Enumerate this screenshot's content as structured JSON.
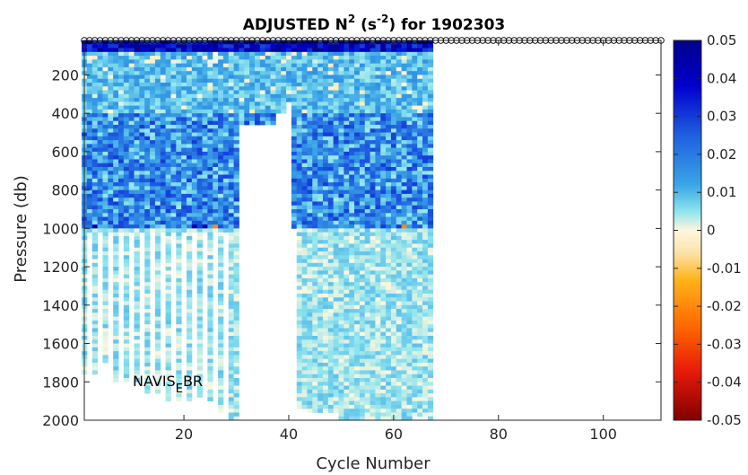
{
  "chart_data": {
    "type": "heatmap",
    "title_main": "ADJUSTED N",
    "title_sup": "2",
    "title_mid": " (s",
    "title_sup2": "-2",
    "title_end": ") for 1902303",
    "xlabel": "Cycle Number",
    "ylabel": "Pressure (db)",
    "xlim": [
      1,
      111
    ],
    "ylim": [
      2000,
      20
    ],
    "x_ticks": [
      "20",
      "40",
      "60",
      "80",
      "100"
    ],
    "y_ticks": [
      "200",
      "400",
      "600",
      "800",
      "1000",
      "1200",
      "1400",
      "1600",
      "1800",
      "2000"
    ],
    "colorbar": {
      "clim": [
        -0.05,
        0.05
      ],
      "colormap": "jet-like diverging (dark red to cream to dark blue)",
      "ticks": [
        "0.05",
        "0.04",
        "0.03",
        "0.02",
        "0.01",
        "0",
        "-0.01",
        "-0.02",
        "-0.03",
        "-0.04",
        "-0.05"
      ]
    },
    "annotation": {
      "text": "NAVIS",
      "subscript": "E",
      "suffix": "BR"
    },
    "surface_marker": "open circles at each cycle near 20 db",
    "data_extent": {
      "cycles": [
        1,
        67
      ],
      "max_pressure": 2000
    },
    "profile_max_pressure": [
      [
        1,
        1750
      ],
      [
        4,
        1700
      ],
      [
        6,
        1800
      ],
      [
        8,
        1800
      ],
      [
        10,
        1800
      ],
      [
        12,
        1850
      ],
      [
        14,
        1860
      ],
      [
        16,
        1900
      ],
      [
        18,
        1900
      ],
      [
        20,
        1900
      ],
      [
        22,
        1880
      ],
      [
        24,
        1900
      ],
      [
        26,
        1950
      ],
      [
        28,
        2000
      ],
      [
        30,
        2000
      ],
      [
        31,
        450
      ],
      [
        38,
        400
      ],
      [
        40,
        330
      ],
      [
        41,
        1000
      ],
      [
        42,
        1930
      ],
      [
        44,
        1950
      ],
      [
        50,
        2000
      ],
      [
        55,
        1990
      ],
      [
        60,
        2000
      ],
      [
        64,
        1980
      ],
      [
        67,
        1990
      ]
    ],
    "typical_values": {
      "0-80 db": "0.03 to 0.05",
      "80-400 db": "0.005 to 0.015",
      "400-1000 db": "0.005 to 0.03",
      "1000-2000 db": "0.000 to 0.008"
    }
  }
}
